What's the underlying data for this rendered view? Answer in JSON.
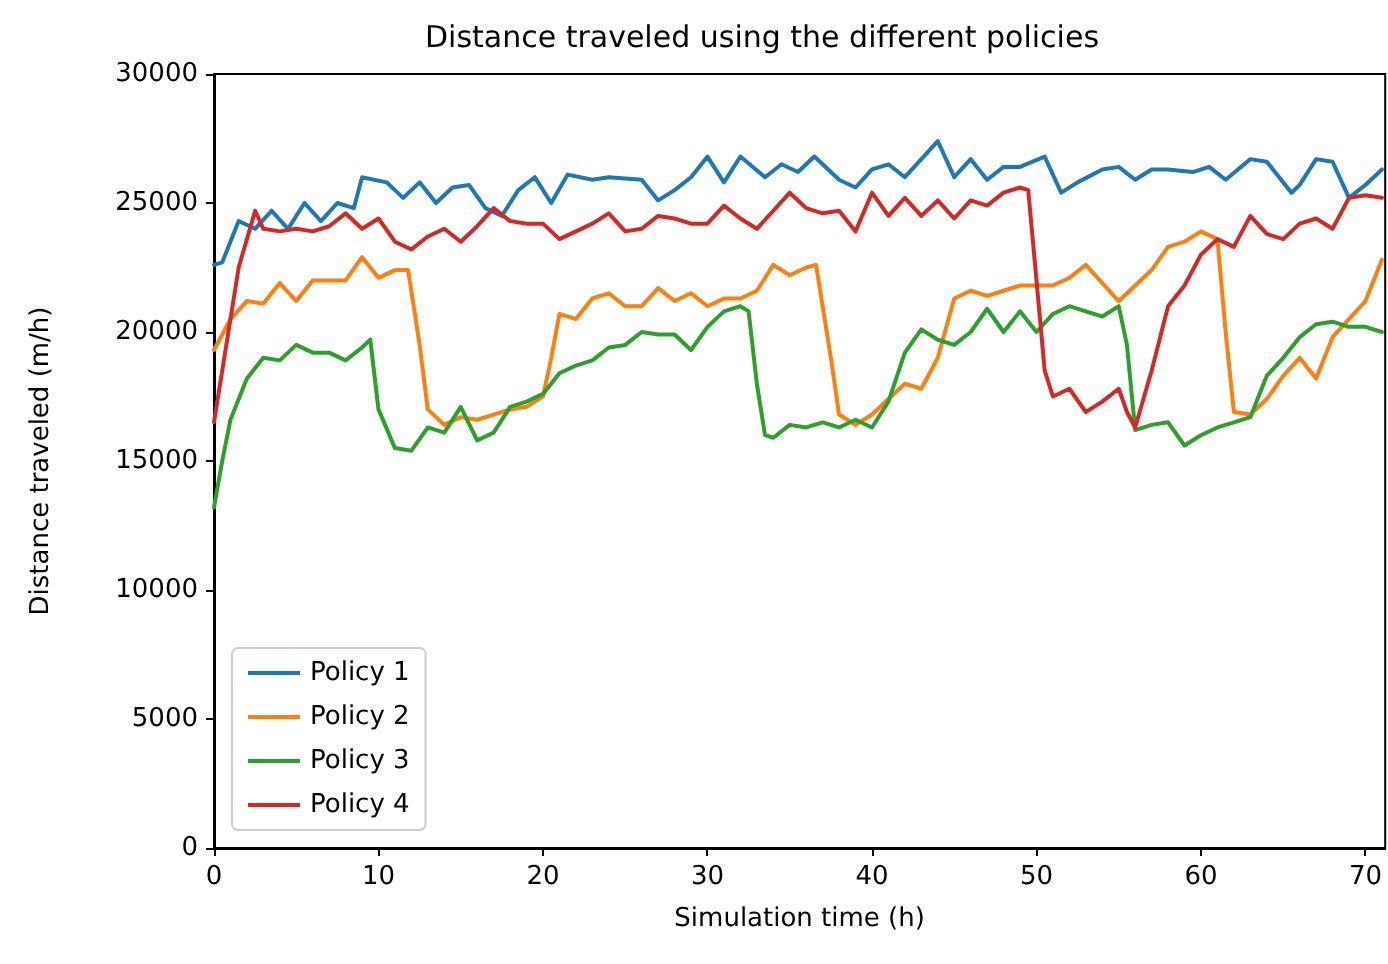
{
  "chart_data": {
    "type": "line",
    "title": "Distance traveled using the different policies",
    "xlabel": "Simulation time (h)",
    "ylabel": "Distance traveled (m/h)",
    "xlim": [
      0,
      71.2
    ],
    "xticks": [
      0,
      10,
      20,
      30,
      40,
      50,
      60,
      70
    ],
    "ylim": [
      0,
      30000
    ],
    "yticks": [
      0,
      5000,
      10000,
      15000,
      20000,
      25000,
      30000
    ],
    "grid": false,
    "legend": "bottom left",
    "marker": "none",
    "line_style": "solid",
    "series": [
      {
        "name": "Policy 1",
        "color": "#1f77b4",
        "x": [
          0,
          0.5,
          1.5,
          2.5,
          3.5,
          4.5,
          5.5,
          6.5,
          7.5,
          8.5,
          9,
          10.5,
          11.5,
          12.5,
          13.5,
          14.5,
          15.5,
          16.5,
          17.5,
          18.5,
          19.5,
          20.5,
          21.5,
          23,
          24,
          26,
          27,
          28,
          29,
          30,
          31,
          32,
          33.5,
          34.5,
          35.5,
          36.5,
          38,
          39,
          40,
          41,
          42,
          43,
          44,
          45,
          46,
          47,
          48,
          49,
          50.5,
          51.5,
          52.5,
          54,
          55,
          56,
          57,
          58,
          59.5,
          60.5,
          61.5,
          63,
          64,
          65.5,
          66,
          67,
          68,
          69,
          70,
          71
        ],
        "values": [
          22600,
          22700,
          24300,
          24000,
          24700,
          24000,
          25000,
          24300,
          25000,
          24800,
          26000,
          25800,
          25200,
          25800,
          25000,
          25600,
          25700,
          24800,
          24500,
          25500,
          26000,
          25000,
          26100,
          25900,
          26000,
          25900,
          25100,
          25500,
          26000,
          26800,
          25800,
          26800,
          26000,
          26500,
          26200,
          26800,
          25900,
          25600,
          26300,
          26500,
          26000,
          26700,
          27400,
          26000,
          26700,
          25900,
          26400,
          26400,
          26800,
          25400,
          25800,
          26300,
          26400,
          25900,
          26300,
          26300,
          26200,
          26400,
          25900,
          26700,
          26600,
          25400,
          25700,
          26700,
          26600,
          25200,
          25700,
          26300
        ]
      },
      {
        "name": "Policy 2",
        "color": "#ff7f0e",
        "x": [
          0,
          1,
          2,
          3,
          4,
          5,
          6,
          7,
          8,
          9,
          10,
          11,
          11.8,
          12.5,
          13,
          14,
          15,
          16,
          17,
          18,
          19,
          20,
          20.5,
          21,
          22,
          23,
          24,
          25,
          26,
          27,
          28,
          29,
          30,
          31,
          32,
          33,
          34,
          35,
          36,
          36.6,
          37.5,
          38,
          39,
          40,
          41,
          42,
          43,
          44,
          45,
          46,
          47,
          48,
          49,
          50,
          51,
          52,
          53,
          54,
          55,
          56,
          57,
          58,
          59,
          60,
          61,
          61.5,
          62,
          63,
          64,
          65,
          66,
          67,
          68,
          69,
          70,
          71
        ],
        "values": [
          19300,
          20500,
          21200,
          21100,
          21900,
          21200,
          22000,
          22000,
          22000,
          22900,
          22100,
          22400,
          22400,
          19500,
          17000,
          16400,
          16700,
          16600,
          16800,
          17000,
          17100,
          17500,
          19000,
          20700,
          20500,
          21300,
          21500,
          21000,
          21000,
          21700,
          21200,
          21500,
          21000,
          21300,
          21300,
          21600,
          22600,
          22200,
          22500,
          22600,
          19000,
          16800,
          16400,
          16800,
          17400,
          18000,
          17800,
          19000,
          21300,
          21600,
          21400,
          21600,
          21800,
          21800,
          21800,
          22100,
          22600,
          21900,
          21200,
          21800,
          22400,
          23300,
          23500,
          23900,
          23600,
          20000,
          16900,
          16800,
          17400,
          18300,
          19000,
          18200,
          19800,
          20500,
          21200,
          22800
        ]
      },
      {
        "name": "Policy 3",
        "color": "#2ca02c",
        "x": [
          0,
          0.5,
          1,
          2,
          3,
          4,
          5,
          6,
          7,
          8,
          9,
          9.5,
          10,
          11,
          12,
          13,
          14,
          15,
          16,
          17,
          18,
          19,
          20,
          21,
          22,
          23,
          24,
          25,
          26,
          27,
          28,
          29,
          30,
          31,
          32,
          32.5,
          33,
          33.5,
          34,
          35,
          36,
          37,
          38,
          39,
          40,
          41,
          42,
          43,
          44,
          45,
          46,
          47,
          48,
          49,
          50,
          51,
          52,
          53,
          54,
          55,
          55.5,
          56,
          57,
          58,
          59,
          60,
          61,
          62,
          63,
          64,
          65,
          66,
          67,
          68,
          69,
          70,
          71
        ],
        "values": [
          13200,
          15000,
          16600,
          18200,
          19000,
          18900,
          19500,
          19200,
          19200,
          18900,
          19400,
          19700,
          17000,
          15500,
          15400,
          16300,
          16100,
          17100,
          15800,
          16100,
          17100,
          17300,
          17600,
          18400,
          18700,
          18900,
          19400,
          19500,
          20000,
          19900,
          19900,
          19300,
          20200,
          20800,
          21000,
          20800,
          18000,
          16000,
          15900,
          16400,
          16300,
          16500,
          16300,
          16600,
          16300,
          17300,
          19200,
          20100,
          19700,
          19500,
          20000,
          20900,
          20000,
          20800,
          20000,
          20700,
          21000,
          20800,
          20600,
          21000,
          19500,
          16200,
          16400,
          16500,
          15600,
          16000,
          16300,
          16500,
          16700,
          18300,
          19000,
          19800,
          20300,
          20400,
          20200,
          20200,
          20000
        ]
      },
      {
        "name": "Policy 4",
        "color": "#d62728",
        "x": [
          0,
          0.5,
          1.5,
          2.5,
          3,
          4,
          5,
          6,
          7,
          8,
          9,
          10,
          11,
          12,
          13,
          14,
          15,
          16,
          17,
          18,
          19,
          20,
          21,
          22,
          23,
          24,
          25,
          26,
          27,
          28,
          29,
          30,
          31,
          32,
          33,
          34,
          35,
          36,
          37,
          38,
          39,
          40,
          41,
          42,
          43,
          44,
          45,
          46,
          47,
          48,
          49,
          49.5,
          50,
          50.5,
          51,
          52,
          53,
          54,
          55,
          55.5,
          56,
          57,
          58,
          59,
          60,
          61,
          62,
          63,
          64,
          65,
          66,
          67,
          68,
          69,
          70,
          71
        ],
        "values": [
          16500,
          18500,
          22500,
          24700,
          24000,
          23900,
          24000,
          23900,
          24100,
          24600,
          24000,
          24400,
          23500,
          23200,
          23700,
          24000,
          23500,
          24100,
          24800,
          24300,
          24200,
          24200,
          23600,
          23900,
          24200,
          24600,
          23900,
          24000,
          24500,
          24400,
          24200,
          24200,
          24900,
          24400,
          24000,
          24700,
          25400,
          24800,
          24600,
          24700,
          23900,
          25400,
          24500,
          25200,
          24500,
          25100,
          24400,
          25100,
          24900,
          25400,
          25600,
          25500,
          22000,
          18500,
          17500,
          17800,
          16900,
          17300,
          17800,
          16900,
          16300,
          18500,
          21000,
          21800,
          23000,
          23600,
          23300,
          24500,
          23800,
          23600,
          24200,
          24400,
          24000,
          25200,
          25300,
          25200
        ]
      }
    ]
  }
}
